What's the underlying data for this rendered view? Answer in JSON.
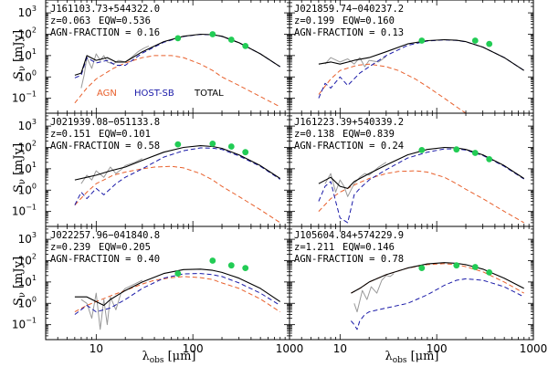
{
  "figure": {
    "ylabel_main": "S",
    "ylabel_sub": "ν",
    "ylabel_unit": "[mJy]",
    "xlabel_main": "λ",
    "xlabel_sub": "obs",
    "xlabel_unit": "[μm]",
    "xticks": [
      "10",
      "100",
      "1000"
    ],
    "yticks": [
      "10",
      "10",
      "10",
      "10",
      "10"
    ],
    "ytick_exps": [
      "3",
      "2",
      "1",
      "0",
      "−1"
    ],
    "legend": [
      "AGN",
      "HOST-SB",
      "TOTAL"
    ],
    "colors": {
      "agn": "#e8602c",
      "host": "#1a1aa8",
      "total": "#000000",
      "ir": "#999999",
      "phot": "#22cc55"
    }
  },
  "chart_data": [
    {
      "type": "line",
      "name": "J161103.73+544322.0",
      "z_text": "z=0.063",
      "eqw_text": "EQW=0.536",
      "agn_text": "AGN-FRACTION = 0.16",
      "xscale": "log",
      "yscale": "log",
      "xlim": [
        3,
        1000
      ],
      "ylim": [
        0.02,
        4000
      ],
      "xlabel": "λobs [μm]",
      "ylabel": "Sν [mJy]",
      "has_legend": true,
      "irs": {
        "x": [
          7,
          7.5,
          8,
          9,
          10,
          11,
          12,
          13,
          15,
          17,
          20,
          23,
          27,
          31,
          35
        ],
        "y": [
          0.3,
          1.2,
          8,
          2.5,
          12,
          6,
          10,
          5,
          4,
          6,
          5,
          8,
          15,
          22,
          28
        ]
      },
      "total": {
        "x": [
          6,
          7,
          8,
          10,
          13,
          16,
          20,
          30,
          50,
          80,
          120,
          160,
          200,
          300,
          500,
          800
        ],
        "y": [
          1.2,
          1.5,
          10,
          6,
          8,
          5,
          5,
          15,
          45,
          80,
          100,
          95,
          80,
          40,
          12,
          3
        ]
      },
      "host": {
        "x": [
          6,
          7,
          8,
          10,
          13,
          16,
          20,
          30,
          50,
          80,
          120,
          160,
          200,
          300,
          500,
          800
        ],
        "y": [
          0.9,
          1.2,
          8,
          4.5,
          6,
          3.5,
          3.5,
          13,
          42,
          78,
          98,
          94,
          79,
          40,
          12,
          3
        ]
      },
      "agn": {
        "x": [
          6,
          8,
          10,
          15,
          20,
          30,
          40,
          60,
          80,
          120,
          160,
          200,
          300,
          500,
          800
        ],
        "y": [
          0.06,
          0.3,
          0.8,
          2.5,
          4.5,
          8,
          10,
          10,
          8,
          4,
          2,
          1,
          0.4,
          0.12,
          0.04
        ]
      },
      "phot": {
        "x": [
          70,
          160,
          250,
          350
        ],
        "y": [
          65,
          100,
          55,
          28
        ]
      }
    },
    {
      "type": "line",
      "name": "J021859.74−040237.2",
      "z_text": "z=0.199",
      "eqw_text": "EQW=0.160",
      "agn_text": "AGN-FRACTION = 0.13",
      "xscale": "log",
      "yscale": "log",
      "xlim": [
        3,
        1000
      ],
      "ylim": [
        0.02,
        4000
      ],
      "has_legend": false,
      "irs": {
        "x": [
          7,
          8,
          10,
          12,
          14,
          16,
          18,
          20,
          25,
          30
        ],
        "y": [
          4,
          8,
          5,
          7,
          4,
          8,
          3,
          6,
          5,
          9
        ]
      },
      "total": {
        "x": [
          6,
          8,
          10,
          14,
          20,
          30,
          50,
          80,
          120,
          160,
          200,
          300,
          500,
          800
        ],
        "y": [
          4,
          5,
          4,
          6,
          8,
          15,
          35,
          50,
          55,
          52,
          45,
          25,
          8,
          2
        ]
      },
      "host": {
        "x": [
          6,
          7,
          8,
          10,
          12,
          16,
          20,
          30,
          50,
          80,
          120,
          160,
          200,
          300,
          500,
          800
        ],
        "y": [
          0.1,
          0.5,
          0.3,
          1,
          0.4,
          1.5,
          3,
          10,
          30,
          48,
          54,
          51,
          44,
          25,
          8,
          2
        ]
      },
      "agn": {
        "x": [
          6,
          8,
          10,
          15,
          20,
          30,
          40,
          60,
          80,
          120,
          160,
          200,
          300
        ],
        "y": [
          0.15,
          0.8,
          2,
          3.5,
          4,
          3,
          2,
          0.8,
          0.35,
          0.1,
          0.04,
          0.02,
          0.01
        ]
      },
      "phot": {
        "x": [
          70,
          250,
          350
        ],
        "y": [
          50,
          50,
          35
        ]
      }
    },
    {
      "type": "line",
      "name": "J021939.08−051133.8",
      "z_text": "z=0.151",
      "eqw_text": "EQW=0.101",
      "agn_text": "AGN-FRACTION = 0.58",
      "xscale": "log",
      "yscale": "log",
      "xlim": [
        3,
        1000
      ],
      "ylim": [
        0.02,
        4000
      ],
      "has_legend": false,
      "irs": {
        "x": [
          7,
          8,
          9,
          10,
          12,
          14,
          16,
          18,
          20,
          25,
          30
        ],
        "y": [
          2,
          5,
          3,
          8,
          4,
          12,
          6,
          9,
          14,
          20,
          30
        ]
      },
      "total": {
        "x": [
          6,
          8,
          10,
          14,
          20,
          30,
          50,
          80,
          120,
          160,
          200,
          300,
          500,
          800
        ],
        "y": [
          3,
          4,
          5,
          8,
          12,
          25,
          60,
          100,
          120,
          110,
          90,
          45,
          14,
          3.5
        ]
      },
      "host": {
        "x": [
          6,
          7,
          8,
          10,
          12,
          16,
          20,
          30,
          50,
          80,
          120,
          160,
          200,
          300,
          500,
          800
        ],
        "y": [
          0.2,
          0.8,
          0.4,
          1.2,
          0.6,
          2,
          4,
          10,
          35,
          70,
          95,
          92,
          80,
          40,
          13,
          3.2
        ]
      },
      "agn": {
        "x": [
          6,
          8,
          10,
          15,
          20,
          30,
          40,
          60,
          80,
          120,
          160,
          200,
          300,
          500,
          800
        ],
        "y": [
          0.2,
          0.8,
          2,
          5,
          7,
          10,
          12,
          13,
          11,
          6,
          3,
          1.5,
          0.5,
          0.12,
          0.03
        ]
      },
      "phot": {
        "x": [
          70,
          160,
          250,
          350
        ],
        "y": [
          140,
          150,
          110,
          60
        ]
      }
    },
    {
      "type": "line",
      "name": "J161223.39+540339.2",
      "z_text": "z=0.138",
      "eqw_text": "EQW=0.839",
      "agn_text": "AGN-FRACTION = 0.24",
      "xscale": "log",
      "yscale": "log",
      "xlim": [
        3,
        1000
      ],
      "ylim": [
        0.02,
        4000
      ],
      "has_legend": false,
      "irs": {
        "x": [
          7,
          8,
          9,
          10,
          11,
          12,
          14,
          16,
          18,
          20,
          25,
          30
        ],
        "y": [
          2,
          6,
          0.8,
          3,
          1.5,
          0.5,
          2,
          4,
          6,
          5,
          12,
          20
        ]
      },
      "total": {
        "x": [
          6,
          8,
          10,
          12,
          14,
          20,
          30,
          50,
          80,
          120,
          160,
          200,
          300,
          500,
          800
        ],
        "y": [
          2,
          4,
          1.5,
          1.2,
          2.5,
          6,
          15,
          45,
          80,
          100,
          95,
          80,
          45,
          14,
          3.5
        ]
      },
      "host": {
        "x": [
          6,
          7,
          8,
          9,
          10,
          12,
          14,
          16,
          20,
          30,
          50,
          80,
          120,
          160,
          200,
          300,
          500,
          800
        ],
        "y": [
          0.3,
          1.5,
          2.5,
          0.3,
          0.05,
          0.03,
          0.6,
          1.2,
          3,
          9,
          32,
          60,
          85,
          85,
          75,
          42,
          13,
          3.3
        ]
      },
      "agn": {
        "x": [
          6,
          8,
          10,
          15,
          20,
          30,
          40,
          60,
          80,
          120,
          160,
          200,
          300,
          500,
          800
        ],
        "y": [
          0.1,
          0.4,
          0.8,
          2,
          3.5,
          6,
          7.5,
          8,
          7,
          4,
          2,
          1.1,
          0.4,
          0.1,
          0.03
        ]
      },
      "phot": {
        "x": [
          70,
          160,
          250,
          350
        ],
        "y": [
          75,
          80,
          55,
          28
        ]
      }
    },
    {
      "type": "line",
      "name": "J022257.96−041840.8",
      "z_text": "z=0.239",
      "eqw_text": "EQW=0.205",
      "agn_text": "AGN-FRACTION = 0.40",
      "xscale": "log",
      "yscale": "log",
      "xlim": [
        3,
        1000
      ],
      "ylim": [
        0.02,
        4000
      ],
      "has_legend": false,
      "irs": {
        "x": [
          7,
          8,
          9,
          10,
          11,
          12,
          13,
          14,
          16,
          18,
          20,
          25,
          30
        ],
        "y": [
          1.5,
          1,
          0.2,
          3,
          0.06,
          1.5,
          0.1,
          2,
          0.5,
          3,
          5,
          8,
          12
        ]
      },
      "total": {
        "x": [
          6,
          8,
          10,
          12,
          14,
          20,
          30,
          50,
          80,
          120,
          160,
          200,
          300,
          500,
          800
        ],
        "y": [
          2,
          2,
          1.2,
          0.8,
          1.5,
          4,
          10,
          25,
          38,
          40,
          35,
          28,
          15,
          5,
          1.2
        ]
      },
      "host": {
        "x": [
          6,
          8,
          10,
          14,
          20,
          30,
          50,
          80,
          120,
          160,
          200,
          300,
          500,
          800
        ],
        "y": [
          0.3,
          0.8,
          0.4,
          0.6,
          1.5,
          5,
          15,
          24,
          25,
          22,
          18,
          9,
          3,
          0.8
        ]
      },
      "agn": {
        "x": [
          6,
          8,
          10,
          15,
          20,
          30,
          40,
          60,
          80,
          120,
          160,
          200,
          300,
          500,
          800
        ],
        "y": [
          0.4,
          0.8,
          1.2,
          2.5,
          4,
          8,
          12,
          16,
          18,
          16,
          13,
          9,
          5,
          1.6,
          0.4
        ]
      },
      "phot": {
        "x": [
          70,
          160,
          250,
          350
        ],
        "y": [
          25,
          100,
          60,
          45
        ]
      }
    },
    {
      "type": "line",
      "name": "J105604.84+574229.9",
      "z_text": "z=1.211",
      "eqw_text": "EQW=0.146",
      "agn_text": "AGN-FRACTION = 0.78",
      "xscale": "log",
      "yscale": "log",
      "xlim": [
        3,
        1000
      ],
      "ylim": [
        0.02,
        4000
      ],
      "has_legend": false,
      "irs": {
        "x": [
          14,
          15,
          17,
          19,
          21,
          24,
          27,
          30,
          33,
          36
        ],
        "y": [
          1,
          0.4,
          4,
          1.5,
          6,
          3,
          12,
          20,
          18,
          25
        ]
      },
      "total": {
        "x": [
          13,
          16,
          20,
          30,
          50,
          80,
          120,
          160,
          200,
          300,
          500,
          800
        ],
        "y": [
          3,
          5,
          10,
          22,
          45,
          70,
          80,
          75,
          65,
          40,
          15,
          5
        ]
      },
      "host": {
        "x": [
          13,
          14,
          15,
          16,
          18,
          20,
          30,
          50,
          80,
          120,
          160,
          200,
          300,
          500,
          800
        ],
        "y": [
          0.15,
          0.1,
          0.06,
          0.15,
          0.3,
          0.4,
          0.6,
          1,
          2.5,
          7,
          12,
          14,
          12,
          6,
          2
        ]
      },
      "agn": {
        "x": [
          13,
          16,
          20,
          30,
          50,
          80,
          120,
          160,
          200,
          300,
          500,
          800
        ],
        "y": [
          3,
          5,
          10,
          22,
          45,
          65,
          72,
          65,
          52,
          30,
          10,
          3
        ]
      },
      "phot": {
        "x": [
          70,
          160,
          250,
          350
        ],
        "y": [
          45,
          60,
          50,
          28
        ]
      }
    }
  ]
}
